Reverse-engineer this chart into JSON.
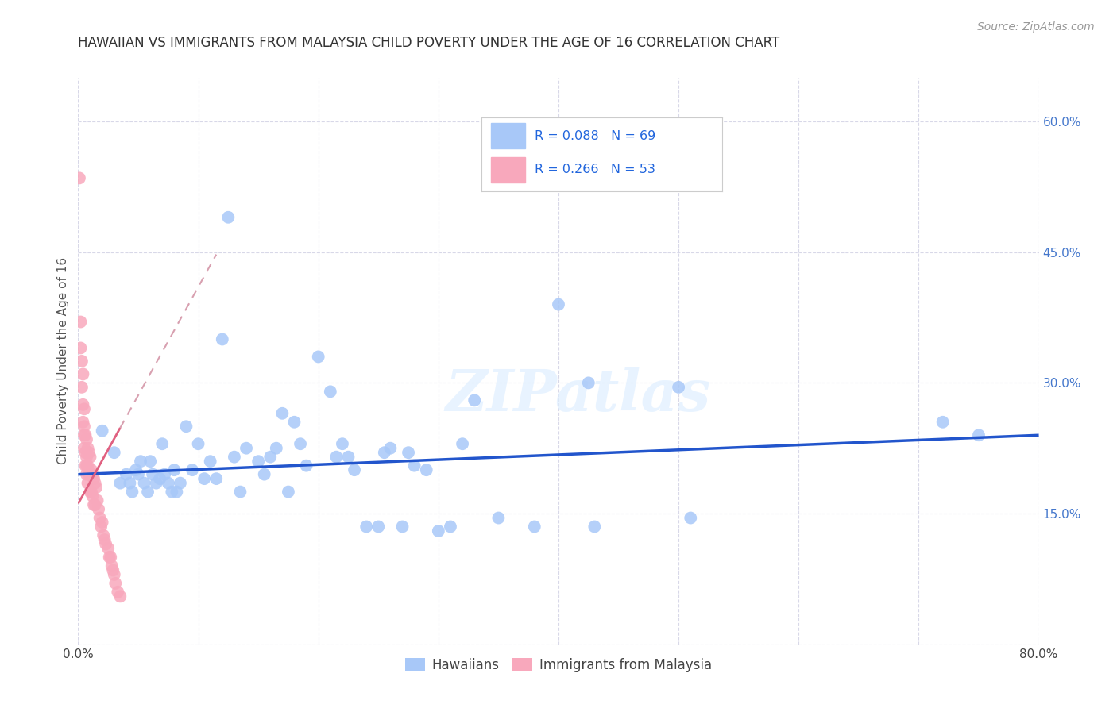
{
  "title": "HAWAIIAN VS IMMIGRANTS FROM MALAYSIA CHILD POVERTY UNDER THE AGE OF 16 CORRELATION CHART",
  "source": "Source: ZipAtlas.com",
  "ylabel": "Child Poverty Under the Age of 16",
  "xlim": [
    0.0,
    0.8
  ],
  "ylim": [
    0.0,
    0.65
  ],
  "yticks": [
    0.0,
    0.15,
    0.3,
    0.45,
    0.6
  ],
  "xticks": [
    0.0,
    0.1,
    0.2,
    0.3,
    0.4,
    0.5,
    0.6,
    0.7,
    0.8
  ],
  "legend_entries": [
    "Hawaiians",
    "Immigrants from Malaysia"
  ],
  "hawaiian_color": "#a8c8f8",
  "malaysia_color": "#f8a8bc",
  "hawaiian_line_color": "#2255cc",
  "malaysia_line_color": "#e06080",
  "malaysia_dash_color": "#d8a0b0",
  "hawaii_R": 0.088,
  "hawaii_N": 69,
  "malaysia_R": 0.266,
  "malaysia_N": 53,
  "background_color": "#ffffff",
  "grid_color": "#d8d8e8",
  "hawaiian_x": [
    0.02,
    0.03,
    0.035,
    0.04,
    0.043,
    0.045,
    0.048,
    0.05,
    0.052,
    0.055,
    0.058,
    0.06,
    0.062,
    0.065,
    0.068,
    0.07,
    0.072,
    0.075,
    0.078,
    0.08,
    0.082,
    0.085,
    0.09,
    0.095,
    0.1,
    0.105,
    0.11,
    0.115,
    0.12,
    0.125,
    0.13,
    0.135,
    0.14,
    0.15,
    0.155,
    0.16,
    0.165,
    0.17,
    0.175,
    0.18,
    0.185,
    0.19,
    0.2,
    0.21,
    0.215,
    0.22,
    0.225,
    0.23,
    0.24,
    0.25,
    0.255,
    0.26,
    0.27,
    0.275,
    0.28,
    0.29,
    0.3,
    0.31,
    0.32,
    0.33,
    0.35,
    0.38,
    0.4,
    0.425,
    0.43,
    0.5,
    0.51,
    0.72,
    0.75
  ],
  "hawaiian_y": [
    0.245,
    0.22,
    0.185,
    0.195,
    0.185,
    0.175,
    0.2,
    0.195,
    0.21,
    0.185,
    0.175,
    0.21,
    0.195,
    0.185,
    0.19,
    0.23,
    0.195,
    0.185,
    0.175,
    0.2,
    0.175,
    0.185,
    0.25,
    0.2,
    0.23,
    0.19,
    0.21,
    0.19,
    0.35,
    0.49,
    0.215,
    0.175,
    0.225,
    0.21,
    0.195,
    0.215,
    0.225,
    0.265,
    0.175,
    0.255,
    0.23,
    0.205,
    0.33,
    0.29,
    0.215,
    0.23,
    0.215,
    0.2,
    0.135,
    0.135,
    0.22,
    0.225,
    0.135,
    0.22,
    0.205,
    0.2,
    0.13,
    0.135,
    0.23,
    0.28,
    0.145,
    0.135,
    0.39,
    0.3,
    0.135,
    0.295,
    0.145,
    0.255,
    0.24
  ],
  "malaysia_x": [
    0.001,
    0.002,
    0.002,
    0.003,
    0.003,
    0.004,
    0.004,
    0.004,
    0.005,
    0.005,
    0.005,
    0.005,
    0.006,
    0.006,
    0.006,
    0.007,
    0.007,
    0.007,
    0.007,
    0.008,
    0.008,
    0.008,
    0.009,
    0.009,
    0.01,
    0.01,
    0.01,
    0.011,
    0.011,
    0.012,
    0.012,
    0.013,
    0.013,
    0.014,
    0.014,
    0.015,
    0.016,
    0.017,
    0.018,
    0.019,
    0.02,
    0.021,
    0.022,
    0.023,
    0.025,
    0.026,
    0.027,
    0.028,
    0.029,
    0.03,
    0.031,
    0.033,
    0.035
  ],
  "malaysia_y": [
    0.535,
    0.34,
    0.37,
    0.325,
    0.295,
    0.31,
    0.275,
    0.255,
    0.27,
    0.25,
    0.24,
    0.225,
    0.24,
    0.22,
    0.205,
    0.235,
    0.215,
    0.205,
    0.195,
    0.225,
    0.205,
    0.185,
    0.22,
    0.195,
    0.215,
    0.195,
    0.175,
    0.2,
    0.175,
    0.195,
    0.17,
    0.19,
    0.16,
    0.185,
    0.16,
    0.18,
    0.165,
    0.155,
    0.145,
    0.135,
    0.14,
    0.125,
    0.12,
    0.115,
    0.11,
    0.1,
    0.1,
    0.09,
    0.085,
    0.08,
    0.07,
    0.06,
    0.055
  ]
}
